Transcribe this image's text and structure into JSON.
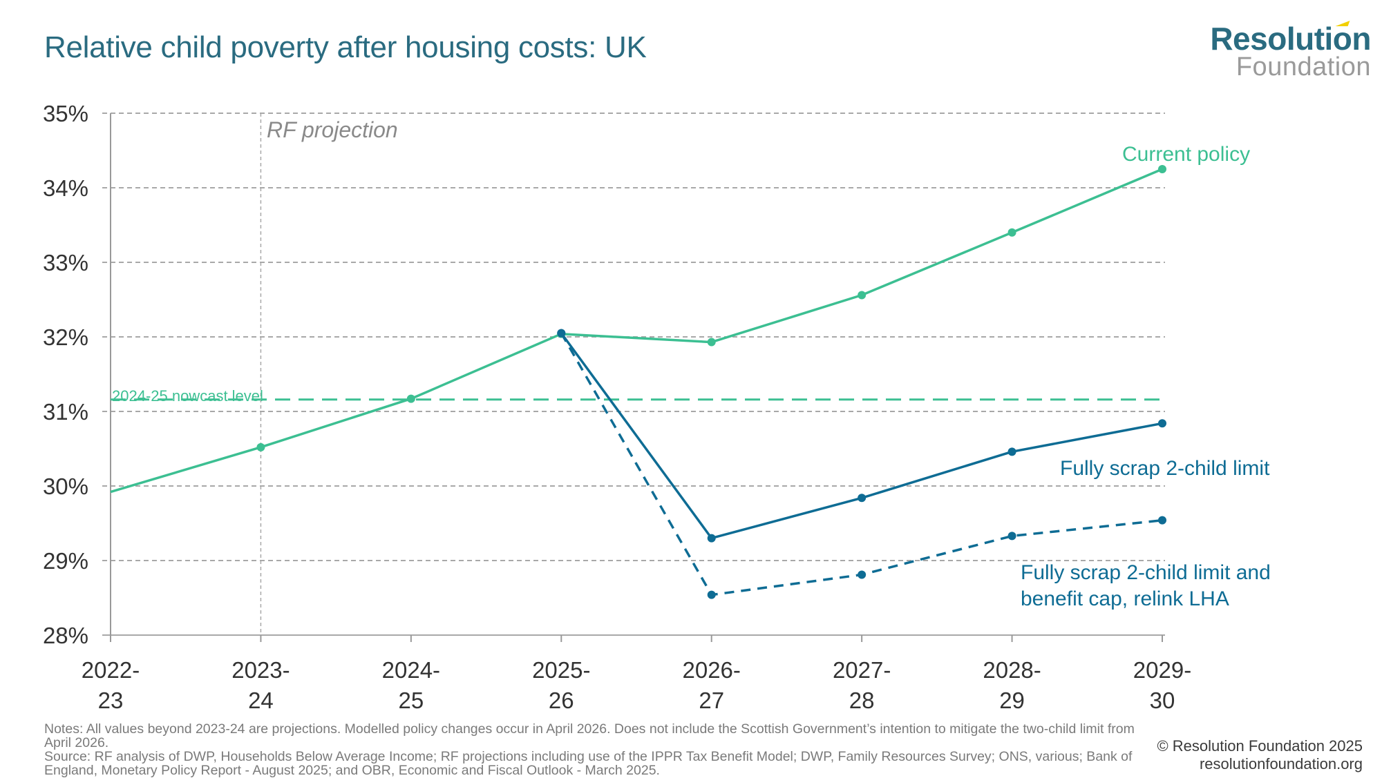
{
  "title": "Relative child poverty after housing costs: UK",
  "logo": {
    "line1": "Resolution",
    "line2": "Foundation"
  },
  "colors": {
    "title": "#2a6b80",
    "current_policy": "#3cbf92",
    "scrap_two_child": "#0e6c94",
    "gridline": "#a8a8a8",
    "axis_text": "#333333",
    "annotation_grey": "#8a8a8a"
  },
  "chart_data": {
    "type": "line",
    "title": "Relative child poverty after housing costs: UK",
    "xlabel": "",
    "ylabel": "",
    "x": [
      "2022-23",
      "2023-24",
      "2024-25",
      "2025-26",
      "2026-27",
      "2027-28",
      "2028-29",
      "2029-30"
    ],
    "x_tick_labels": [
      [
        "2022-",
        "23"
      ],
      [
        "2023-",
        "24"
      ],
      [
        "2024-",
        "25"
      ],
      [
        "2025-",
        "26"
      ],
      [
        "2026-",
        "27"
      ],
      [
        "2027-",
        "28"
      ],
      [
        "2028-",
        "29"
      ],
      [
        "2029-",
        "30"
      ]
    ],
    "ylim": [
      28,
      35
    ],
    "y_ticks": [
      28,
      29,
      30,
      31,
      32,
      33,
      34,
      35
    ],
    "y_tick_labels": [
      "28%",
      "29%",
      "30%",
      "31%",
      "32%",
      "33%",
      "34%",
      "35%"
    ],
    "grid": true,
    "series": [
      {
        "name": "Current policy",
        "style": "solid",
        "color": "#3cbf92",
        "values": [
          29.92,
          30.52,
          31.17,
          32.04,
          31.93,
          32.56,
          33.4,
          34.25
        ],
        "markers_from_index": 1
      },
      {
        "name": "Fully scrap 2-child limit",
        "style": "solid",
        "color": "#0e6c94",
        "values": [
          null,
          null,
          null,
          32.05,
          29.3,
          29.84,
          30.46,
          30.84
        ]
      },
      {
        "name": "Fully scrap 2-child limit and benefit cap, relink LHA",
        "style": "dashed",
        "color": "#0e6c94",
        "values": [
          null,
          null,
          null,
          32.05,
          28.54,
          28.81,
          29.33,
          29.54
        ]
      }
    ],
    "reference_lines": [
      {
        "label": "2024-25 nowcast level",
        "value": 31.16,
        "orientation": "horizontal",
        "style": "dashed",
        "color": "#3cbf92"
      },
      {
        "label": "RF projection",
        "x": "2023-24",
        "orientation": "vertical",
        "style": "dotted",
        "color": "#a8a8a8"
      }
    ],
    "annotations": [
      {
        "text": "Current policy",
        "series": 0
      },
      {
        "text": "Fully scrap 2-child limit",
        "series": 1
      },
      {
        "text_lines": [
          "Fully scrap 2-child limit and",
          "benefit cap, relink LHA"
        ],
        "series": 2
      },
      {
        "text": "RF projection"
      },
      {
        "text": "2024-25 nowcast level"
      }
    ]
  },
  "footnotes": {
    "notes": "Notes: All values beyond 2023-24 are projections. Modelled policy changes occur in April 2026. Does not include the Scottish Government’s intention to mitigate the two-child limit from April 2026.",
    "source": "Source: RF analysis of DWP, Households Below Average Income; RF projections including use of the IPPR Tax Benefit Model; DWP, Family Resources Survey; ONS, various; Bank of England, Monetary Policy Report - August 2025; and OBR, Economic and Fiscal Outlook - March 2025."
  },
  "credit": {
    "copyright": "© Resolution Foundation 2025",
    "website": "resolutionfoundation.org"
  }
}
